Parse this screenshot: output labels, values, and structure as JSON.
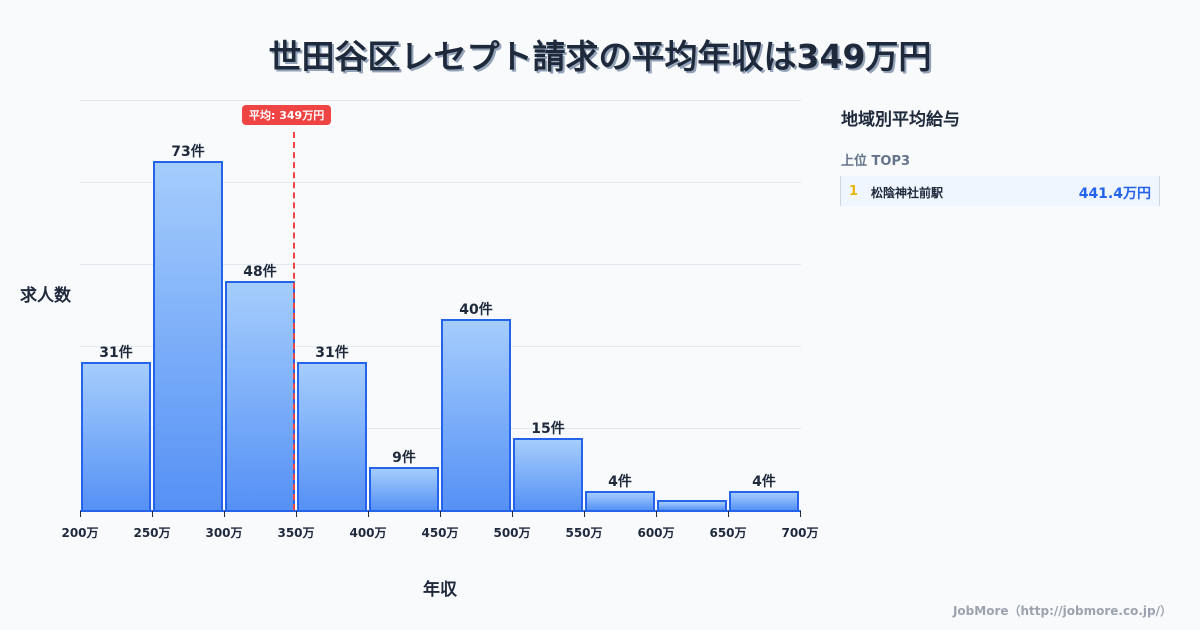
{
  "title": "世田谷区レセプト請求の平均年収は349万円",
  "chart": {
    "ylabel": "求人数",
    "xlabel": "年収",
    "average_badge": "平均: 349万円",
    "ticks": [
      "200万",
      "250万",
      "300万",
      "350万",
      "400万",
      "450万",
      "500万",
      "550万",
      "600万",
      "650万",
      "700万"
    ],
    "bars": [
      {
        "label": "31件",
        "value": 31
      },
      {
        "label": "73件",
        "value": 73
      },
      {
        "label": "48件",
        "value": 48
      },
      {
        "label": "31件",
        "value": 31
      },
      {
        "label": "9件",
        "value": 9
      },
      {
        "label": "40件",
        "value": 40
      },
      {
        "label": "15件",
        "value": 15
      },
      {
        "label": "4件",
        "value": 4
      },
      {
        "label": "",
        "value": 2
      },
      {
        "label": "4件",
        "value": 4
      }
    ]
  },
  "panel": {
    "title": "地域別平均給与",
    "subtitle": "上位 TOP3",
    "ranks": [
      {
        "rank": "1",
        "name": "松陰神社前駅",
        "value": "441.4万円"
      }
    ]
  },
  "footer": "JobMore（http://jobmore.co.jp/）",
  "colors": {
    "bar": "#60a5fa",
    "bar_border": "#2563eb",
    "average_line": "#ef4444",
    "rank_number": "#eab308",
    "rank_value": "#2563eb"
  },
  "chart_data": {
    "type": "bar",
    "title": "世田谷区レセプト請求の平均年収は349万円",
    "xlabel": "年収",
    "ylabel": "求人数",
    "categories": [
      "200-250万",
      "250-300万",
      "300-350万",
      "350-400万",
      "400-450万",
      "450-500万",
      "500-550万",
      "550-600万",
      "600-650万",
      "650-700万"
    ],
    "values": [
      31,
      73,
      48,
      31,
      9,
      40,
      15,
      4,
      2,
      4
    ],
    "x_tick_labels": [
      "200万",
      "250万",
      "300万",
      "350万",
      "400万",
      "450万",
      "500万",
      "550万",
      "600万",
      "650万",
      "700万"
    ],
    "annotations": [
      {
        "type": "vline",
        "x": 349,
        "label": "平均: 349万円"
      }
    ],
    "grid": true,
    "ylim": [
      0,
      85
    ]
  }
}
